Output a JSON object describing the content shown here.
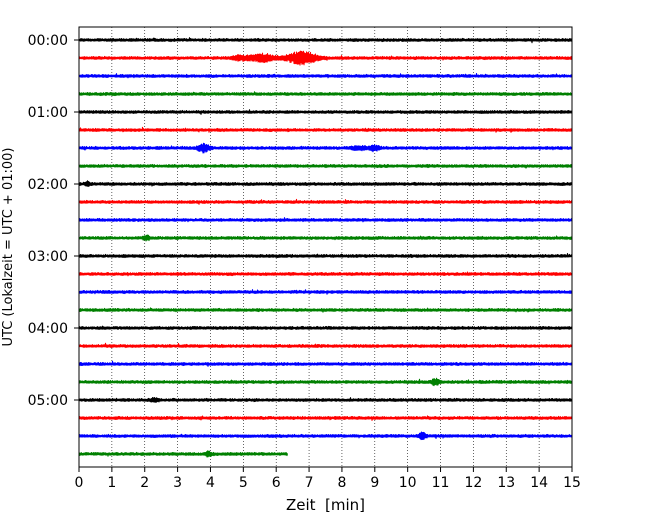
{
  "chart_data": {
    "type": "line",
    "subtype": "helicorder",
    "xlabel": "Zeit  [min]",
    "ylabel": "UTC (Lokalzeit = UTC + 01:00)",
    "xlim": [
      0,
      15
    ],
    "x_ticks": [
      0,
      1,
      2,
      3,
      4,
      5,
      6,
      7,
      8,
      9,
      10,
      11,
      12,
      13,
      14,
      15
    ],
    "y_tick_labels": [
      "00:00",
      "01:00",
      "02:00",
      "03:00",
      "04:00",
      "05:00"
    ],
    "y_tick_rows": [
      0,
      4,
      8,
      12,
      16,
      20
    ],
    "grid": "vertical-dotted",
    "trace_minutes": 15,
    "color_cycle": [
      "#000000",
      "#ff0000",
      "#0000ff",
      "#008000"
    ],
    "row_count": 24,
    "last_row_end_min": 6.35,
    "events": [
      {
        "row": 1,
        "center_min": 6.8,
        "width_min": 0.9,
        "amplitude": 6.0
      },
      {
        "row": 1,
        "center_min": 5.6,
        "width_min": 0.8,
        "amplitude": 3.5
      },
      {
        "row": 1,
        "center_min": 4.9,
        "width_min": 0.5,
        "amplitude": 2.0
      },
      {
        "row": 6,
        "center_min": 3.8,
        "width_min": 0.35,
        "amplitude": 4.0
      },
      {
        "row": 6,
        "center_min": 9.0,
        "width_min": 0.3,
        "amplitude": 2.5
      },
      {
        "row": 6,
        "center_min": 8.5,
        "width_min": 0.5,
        "amplitude": 1.5
      },
      {
        "row": 8,
        "center_min": 0.25,
        "width_min": 0.15,
        "amplitude": 2.0
      },
      {
        "row": 11,
        "center_min": 2.05,
        "width_min": 0.2,
        "amplitude": 2.0
      },
      {
        "row": 19,
        "center_min": 10.85,
        "width_min": 0.25,
        "amplitude": 2.5
      },
      {
        "row": 20,
        "center_min": 2.3,
        "width_min": 0.25,
        "amplitude": 1.5
      },
      {
        "row": 22,
        "center_min": 10.45,
        "width_min": 0.2,
        "amplitude": 3.0
      },
      {
        "row": 23,
        "center_min": 3.95,
        "width_min": 0.2,
        "amplitude": 2.0
      }
    ]
  }
}
